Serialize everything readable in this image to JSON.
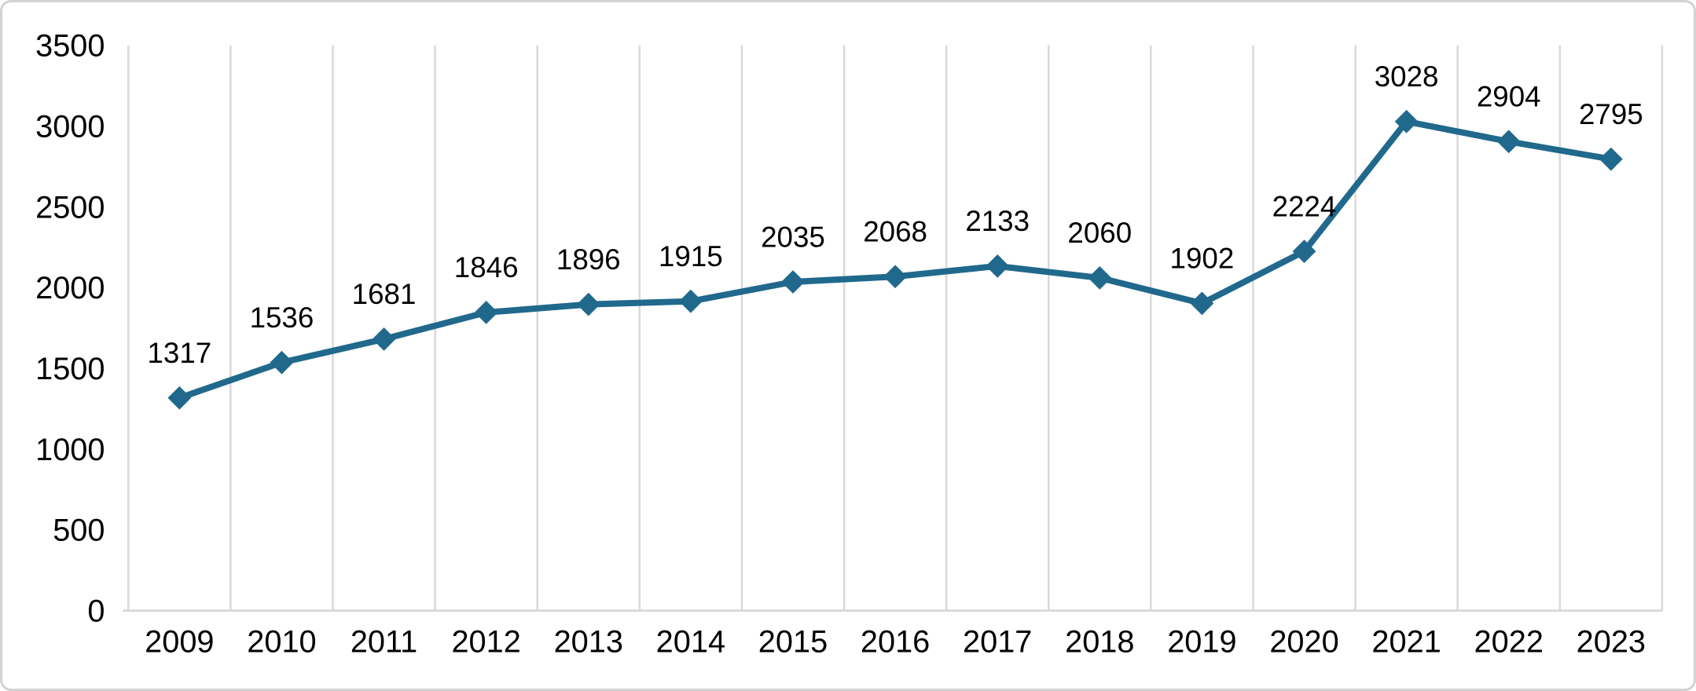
{
  "chart_data": {
    "type": "line",
    "title": "",
    "xlabel": "",
    "ylabel": "",
    "categories": [
      "2009",
      "2010",
      "2011",
      "2012",
      "2013",
      "2014",
      "2015",
      "2016",
      "2017",
      "2018",
      "2019",
      "2020",
      "2021",
      "2022",
      "2023"
    ],
    "series": [
      {
        "name": "value",
        "values": [
          1317,
          1536,
          1681,
          1846,
          1896,
          1915,
          2035,
          2068,
          2133,
          2060,
          1902,
          2224,
          3028,
          2904,
          2795
        ]
      }
    ],
    "data_labels": [
      1317,
      1536,
      1681,
      1846,
      1896,
      1915,
      2035,
      2068,
      2133,
      2060,
      1902,
      2224,
      3028,
      2904,
      2795
    ],
    "ylim": [
      0,
      3500
    ],
    "yticks": [
      0,
      500,
      1000,
      1500,
      2000,
      2500,
      3000,
      3500
    ],
    "grid": "vertical-only",
    "legend": "none",
    "marker": "diamond",
    "colors": {
      "line": "#20698C",
      "marker": "#20698C",
      "gridline": "#D9D9D9",
      "axis_line": "#D9D9D9",
      "label_text": "#000000",
      "background": "#FFFFFF",
      "card_border": "#D2D2D2"
    }
  }
}
